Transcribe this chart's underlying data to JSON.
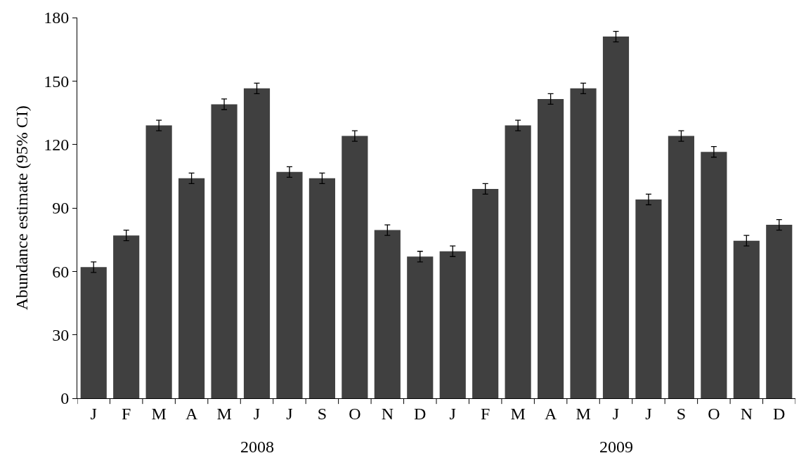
{
  "chart_data": {
    "type": "bar",
    "ylabel": "Abundance estimate (95% CI)",
    "categories": [
      "J",
      "F",
      "M",
      "A",
      "M",
      "J",
      "J",
      "S",
      "O",
      "N",
      "D",
      "J",
      "F",
      "M",
      "A",
      "M",
      "J",
      "J",
      "S",
      "O",
      "N",
      "D"
    ],
    "values": [
      62,
      77,
      129,
      104,
      139,
      146.5,
      107,
      104,
      124,
      79.5,
      67,
      69.5,
      99,
      129,
      141.5,
      146.5,
      171,
      94,
      124,
      116.5,
      74.5,
      82
    ],
    "errors": [
      2.5,
      2.5,
      2.5,
      2.5,
      2.5,
      2.5,
      2.5,
      2.5,
      2.5,
      2.5,
      2.5,
      2.5,
      2.5,
      2.5,
      2.5,
      2.5,
      2.5,
      2.5,
      2.5,
      2.5,
      2.5,
      2.5
    ],
    "color": "#404040",
    "ylim": [
      0,
      180
    ],
    "yticks": [
      0,
      30,
      60,
      90,
      120,
      150,
      180
    ],
    "annotations": [
      "2008",
      "2009"
    ]
  }
}
